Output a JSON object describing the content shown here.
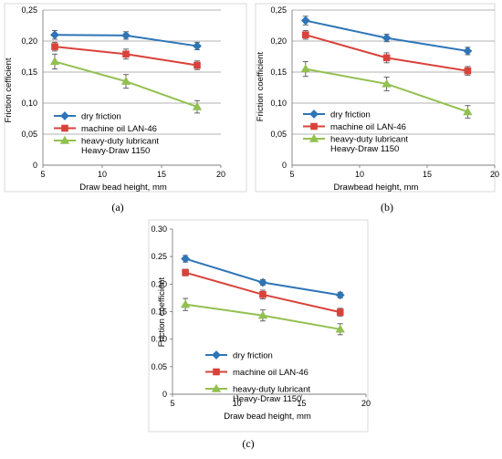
{
  "chart_data": [
    {
      "type": "line",
      "caption": "(a)",
      "xlabel": "Draw bead height, mm",
      "ylabel": "Friction cefficient",
      "xlim": [
        5,
        20
      ],
      "ylim": [
        0,
        0.25
      ],
      "xticks": [
        "5",
        "10",
        "15",
        "20"
      ],
      "yticks": [
        "0",
        "0,05",
        "0,10",
        "0,15",
        "0,20",
        "0,25"
      ],
      "grid": "horizontal",
      "legend_position": "lower-left",
      "x": [
        6,
        12,
        18
      ],
      "series": [
        {
          "name": "dry friction",
          "color": "#2e75b6",
          "marker": "diamond",
          "values": [
            0.21,
            0.209,
            0.192
          ],
          "errors": [
            0.007,
            0.006,
            0.006
          ]
        },
        {
          "name": "machine oil LAN-46",
          "color": "#d9423a",
          "marker": "square",
          "values": [
            0.191,
            0.179,
            0.161
          ],
          "errors": [
            0.007,
            0.008,
            0.007
          ]
        },
        {
          "name": "heavy-duty lubricant Heavy-Draw 1150",
          "name_lines": [
            "heavy-duty lubricant",
            "Heavy-Draw 1150"
          ],
          "color": "#92c050",
          "marker": "triangle",
          "values": [
            0.167,
            0.135,
            0.094
          ],
          "errors": [
            0.012,
            0.011,
            0.01
          ]
        }
      ]
    },
    {
      "type": "line",
      "caption": "(b)",
      "xlabel": "Drawbead height, mm",
      "ylabel": "Friction coefficient",
      "xlim": [
        5,
        20
      ],
      "ylim": [
        0,
        0.25
      ],
      "xticks": [
        "5",
        "10",
        "15",
        "20"
      ],
      "yticks": [
        "0",
        "0,05",
        "0,10",
        "0,15",
        "0,20",
        "0,25"
      ],
      "grid": "horizontal",
      "legend_position": "lower-left",
      "x": [
        6,
        12,
        18
      ],
      "series": [
        {
          "name": "dry friction",
          "color": "#2e75b6",
          "marker": "diamond",
          "values": [
            0.233,
            0.205,
            0.184
          ],
          "errors": [
            0.007,
            0.006,
            0.006
          ]
        },
        {
          "name": "machine oil LAN-46",
          "color": "#d9423a",
          "marker": "square",
          "values": [
            0.21,
            0.173,
            0.152
          ],
          "errors": [
            0.007,
            0.008,
            0.007
          ]
        },
        {
          "name": "heavy-duty lubricant Heavy-Draw 1150",
          "name_lines": [
            "heavy-duty lubricant",
            "Heavy-Draw 1150"
          ],
          "color": "#92c050",
          "marker": "triangle",
          "values": [
            0.155,
            0.131,
            0.086
          ],
          "errors": [
            0.012,
            0.011,
            0.01
          ]
        }
      ]
    },
    {
      "type": "line",
      "caption": "(c)",
      "xlabel": "Draw bead height, mm",
      "ylabel": "Friction coefficient",
      "xlim": [
        5,
        20
      ],
      "ylim": [
        0,
        0.3
      ],
      "xticks": [
        "5",
        "10",
        "15",
        "20"
      ],
      "yticks": [
        "0",
        "0.05",
        "0.10",
        "0.15",
        "0.20",
        "0.25",
        "0.30"
      ],
      "grid": "none",
      "legend_position": "lower-center",
      "x": [
        6,
        12,
        18
      ],
      "series": [
        {
          "name": "dry friction",
          "color": "#2e75b6",
          "marker": "diamond",
          "values": [
            0.246,
            0.203,
            0.18
          ],
          "errors": [
            0.006,
            0.005,
            0.005
          ]
        },
        {
          "name": "machine oil LAN-46",
          "color": "#d9423a",
          "marker": "square",
          "values": [
            0.221,
            0.181,
            0.149
          ],
          "errors": [
            0.006,
            0.008,
            0.007
          ]
        },
        {
          "name": "heavy-duty lubricant Heavy-Draw 1150",
          "name_lines": [
            "heavy-duty lubricant",
            "Heavy-Draw 1150"
          ],
          "color": "#92c050",
          "marker": "triangle",
          "values": [
            0.163,
            0.143,
            0.118
          ],
          "errors": [
            0.011,
            0.01,
            0.01
          ]
        }
      ]
    }
  ]
}
